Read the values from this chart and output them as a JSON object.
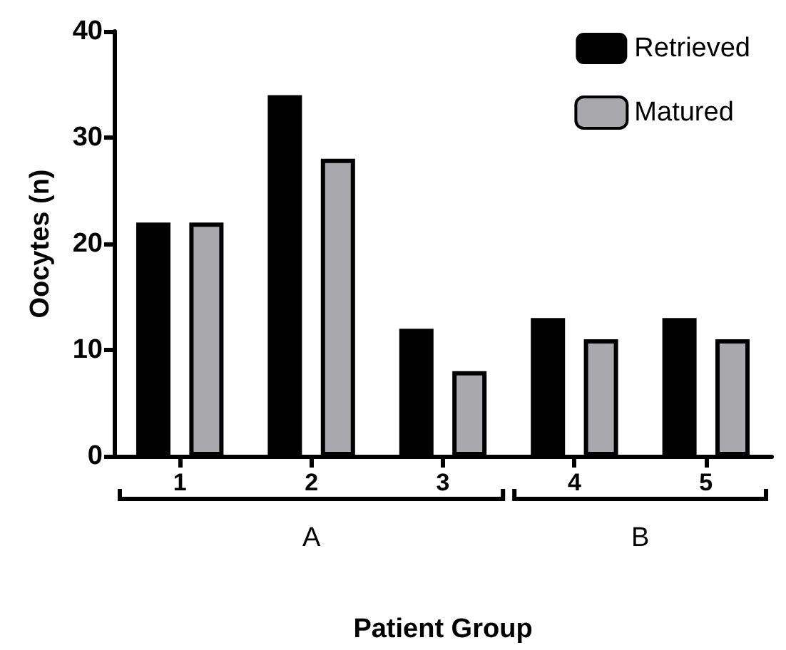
{
  "chart_data": {
    "type": "bar",
    "xlabel": "Patient Group",
    "ylabel": "Oocytes (n)",
    "categories": [
      "1",
      "2",
      "3",
      "4",
      "5"
    ],
    "series": [
      {
        "name": "Retrieved",
        "color": "#000000",
        "values": [
          22,
          34,
          12,
          13,
          13
        ]
      },
      {
        "name": "Matured",
        "color": "#a8a8ad",
        "values": [
          22,
          28,
          8,
          11,
          11
        ]
      }
    ],
    "ylim": [
      0,
      40
    ],
    "yticks": [
      0,
      10,
      20,
      30,
      40
    ],
    "grid": false,
    "legend": "top right",
    "annotations": [
      "A",
      "B"
    ]
  }
}
